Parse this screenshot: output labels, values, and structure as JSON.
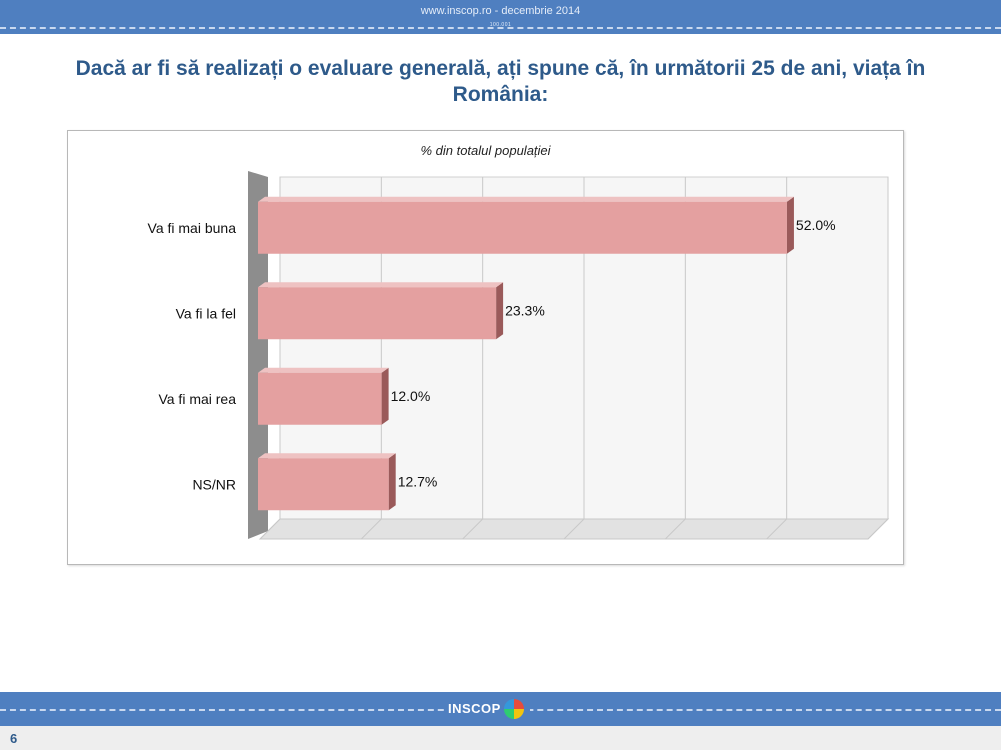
{
  "header": {
    "text": "www.inscop.ro   -   decembrie 2014",
    "sub": "100.001"
  },
  "title": "Dacă ar fi să realizați o evaluare generală, ați spune că, în următorii 25 de ani, viața în România:",
  "chart_data": {
    "type": "bar",
    "orientation": "horizontal",
    "title": "% din totalul populației",
    "categories": [
      "Va fi mai buna",
      "Va fi la fel",
      "Va fi mai rea",
      "NS/NR"
    ],
    "values": [
      52.0,
      23.3,
      12.0,
      12.7
    ],
    "value_labels": [
      "52.0%",
      "23.3%",
      "12.0%",
      "12.7%"
    ],
    "xlim": [
      0,
      60
    ],
    "grid": true,
    "bar_color": "#e4a0a0",
    "bar_side_color": "#9a5a5a"
  },
  "footer": {
    "logo_text": "INSCOP",
    "page_number": "6"
  }
}
